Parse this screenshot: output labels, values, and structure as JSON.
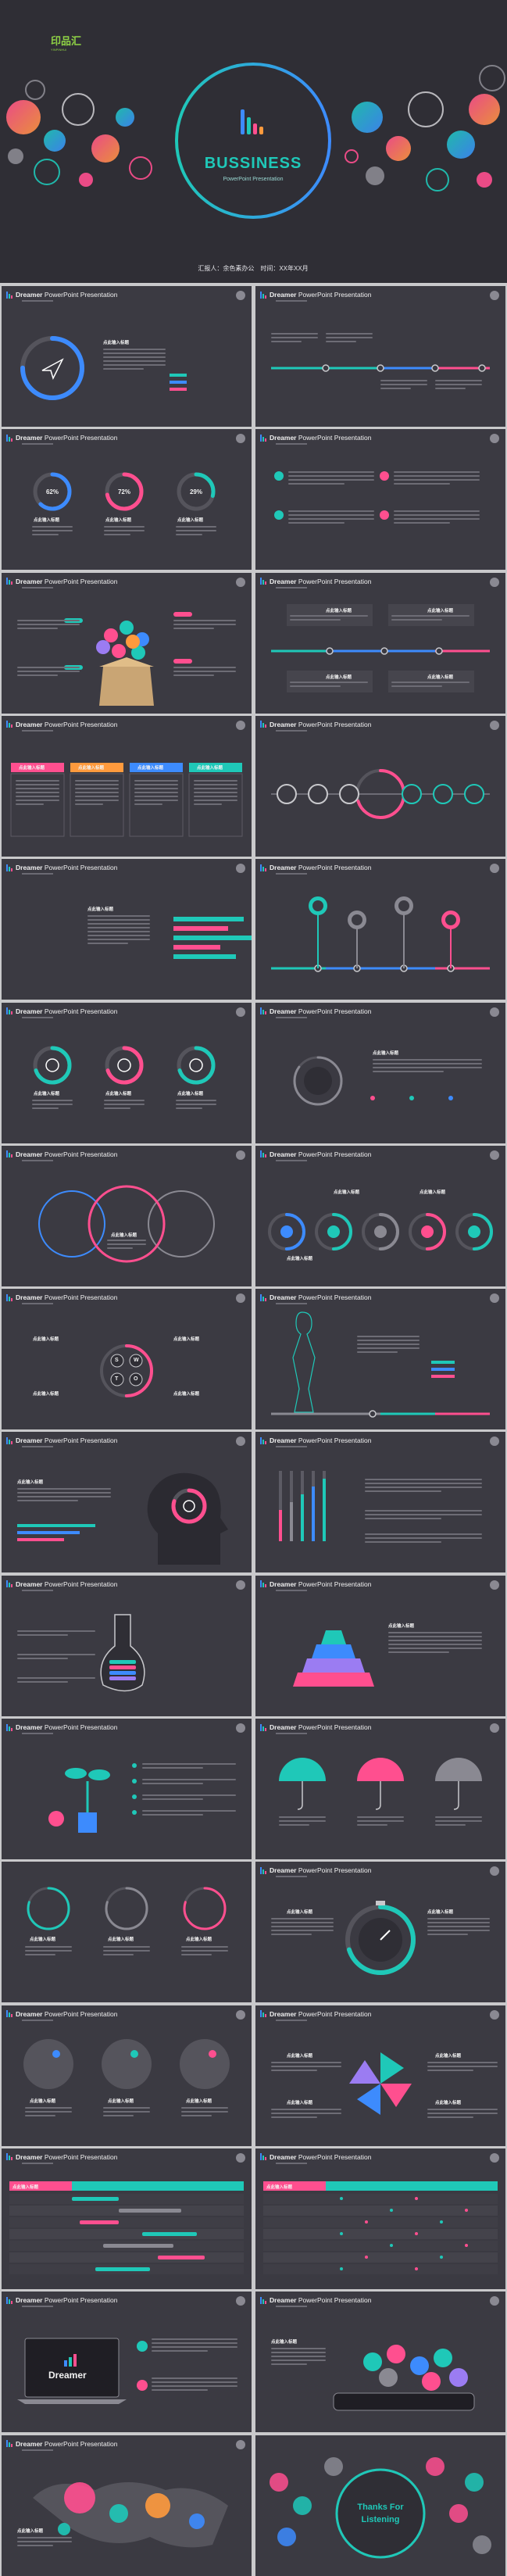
{
  "cover": {
    "logo_text": "印品汇",
    "logo_sub": "YINPINHUI",
    "title": "BUSSINESS",
    "subtitle": "PowerPoint  Presentation",
    "meta": "汇报人：余色素办公　时间：XX年XX月"
  },
  "slide_header": {
    "brand": "Dreamer",
    "rest": " PowerPoint Presentation"
  },
  "placeholder": "点此输入标题",
  "pcts": [
    "62%",
    "72%",
    "29%"
  ],
  "swot": [
    "S",
    "W",
    "T",
    "O"
  ],
  "dreamer_label": "Dreamer",
  "thanks": {
    "line1": "Thanks For",
    "line2": "Listening"
  },
  "colors": {
    "teal": "#1fc8b8",
    "pink": "#ff4f8f",
    "blue": "#3d8bfd",
    "gray": "#8a8992"
  }
}
